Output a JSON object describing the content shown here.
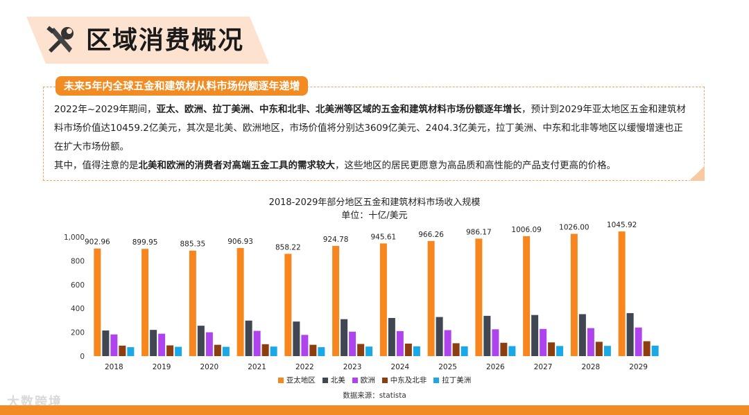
{
  "colors": {
    "accent": "#f28b22",
    "asia_pacific": "#f7861e",
    "north_america": "#404752",
    "europe": "#ad44ed",
    "mideast_africa": "#8c3e10",
    "latin_america": "#1aa9e6"
  },
  "header": {
    "title": "区域消费概况",
    "icon": "tools-icon"
  },
  "subtitle": "未来5年内全球五金和建筑材从料市场份额逐年递增",
  "paragraph1": {
    "pre": "2022年~2029年期间，",
    "bold": "亚太、欧洲、拉丁美洲、中东和北非、北美洲等区域的五金和建筑材料市场份额逐年增长",
    "post": "，预计到2029年亚太地区五金和建筑材料市场价值达10459.2亿美元，其次是北美、欧洲地区，市场价值将分别达3609亿美元、2404.3亿美元，拉丁美洲、中东和北非等地区以缓慢增速也正在扩大市场份额。"
  },
  "paragraph2": {
    "pre": "其中，值得注意的是",
    "bold": "北美和欧洲的消费者对高端五金工具的需求较大",
    "post": "，这些地区的居民更愿意为高品质和高性能的产品支付更高的价格。"
  },
  "chart_data": {
    "type": "bar",
    "title": "2018-2029年部分地区五金和建筑材料市场收入规模",
    "subtitle": "单位：十亿/美元",
    "categories": [
      "2018",
      "2019",
      "2020",
      "2021",
      "2022",
      "2023",
      "2024",
      "2025",
      "2026",
      "2027",
      "2028",
      "2029"
    ],
    "ylim": [
      0,
      1000
    ],
    "yticks": [
      "0",
      "200",
      "400",
      "600",
      "800",
      "1,000"
    ],
    "series": [
      {
        "name": "亚太地区",
        "values": [
          902.96,
          899.95,
          885.35,
          906.93,
          858.22,
          924.78,
          945.61,
          966.26,
          986.17,
          1006.09,
          1026.0,
          1045.92
        ],
        "labels": [
          "902.96",
          "899.95",
          "885.35",
          "906.93",
          "858.22",
          "924.78",
          "945.61",
          "966.26",
          "986.17",
          "1006.09",
          "1026.00",
          "1045.92"
        ]
      },
      {
        "name": "北美",
        "values": [
          215,
          220,
          255,
          298,
          290,
          310,
          320,
          328,
          338,
          345,
          352,
          361
        ]
      },
      {
        "name": "欧洲",
        "values": [
          182,
          188,
          200,
          212,
          178,
          205,
          210,
          218,
          225,
          228,
          235,
          240
        ]
      },
      {
        "name": "中东及北非",
        "values": [
          88,
          90,
          95,
          100,
          95,
          102,
          105,
          108,
          112,
          115,
          120,
          125
        ]
      },
      {
        "name": "拉丁美洲",
        "values": [
          75,
          78,
          78,
          80,
          75,
          80,
          82,
          82,
          84,
          85,
          86,
          88
        ]
      }
    ],
    "source": "数据来源：statista"
  },
  "watermark": "大数跨境"
}
